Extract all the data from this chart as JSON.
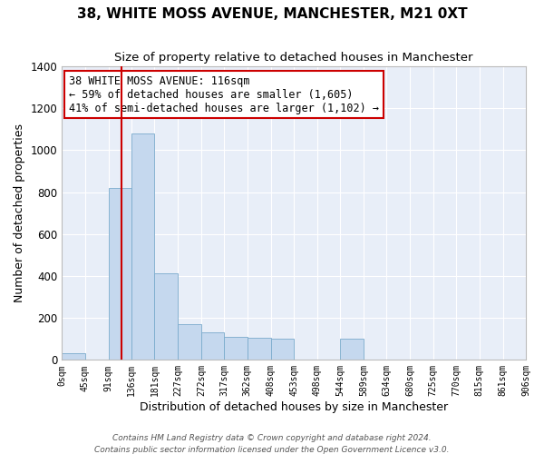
{
  "title": "38, WHITE MOSS AVENUE, MANCHESTER, M21 0XT",
  "subtitle": "Size of property relative to detached houses in Manchester",
  "xlabel": "Distribution of detached houses by size in Manchester",
  "ylabel": "Number of detached properties",
  "bar_color": "#c5d8ee",
  "bar_edge_color": "#7aabcc",
  "background_color": "#e8eef8",
  "grid_color": "white",
  "bins": [
    0,
    45,
    91,
    136,
    181,
    227,
    272,
    317,
    362,
    408,
    453,
    498,
    544,
    589,
    634,
    680,
    725,
    770,
    815,
    861,
    906
  ],
  "counts": [
    30,
    0,
    820,
    1080,
    415,
    170,
    130,
    110,
    105,
    100,
    0,
    0,
    100,
    0,
    0,
    0,
    0,
    0,
    0,
    0
  ],
  "tick_labels": [
    "0sqm",
    "45sqm",
    "91sqm",
    "136sqm",
    "181sqm",
    "227sqm",
    "272sqm",
    "317sqm",
    "362sqm",
    "408sqm",
    "453sqm",
    "498sqm",
    "544sqm",
    "589sqm",
    "634sqm",
    "680sqm",
    "725sqm",
    "770sqm",
    "815sqm",
    "861sqm",
    "906sqm"
  ],
  "ylim": [
    0,
    1400
  ],
  "yticks": [
    0,
    200,
    400,
    600,
    800,
    1000,
    1200,
    1400
  ],
  "property_line_x": 116,
  "property_line_color": "#cc0000",
  "annotation_text": "38 WHITE MOSS AVENUE: 116sqm\n← 59% of detached houses are smaller (1,605)\n41% of semi-detached houses are larger (1,102) →",
  "annotation_box_color": "white",
  "annotation_box_edge": "#cc0000",
  "footer": "Contains HM Land Registry data © Crown copyright and database right 2024.\nContains public sector information licensed under the Open Government Licence v3.0.",
  "title_fontsize": 11,
  "subtitle_fontsize": 9.5,
  "ylabel_fontsize": 9,
  "xlabel_fontsize": 9,
  "annotation_fontsize": 8.5,
  "footer_fontsize": 6.5
}
